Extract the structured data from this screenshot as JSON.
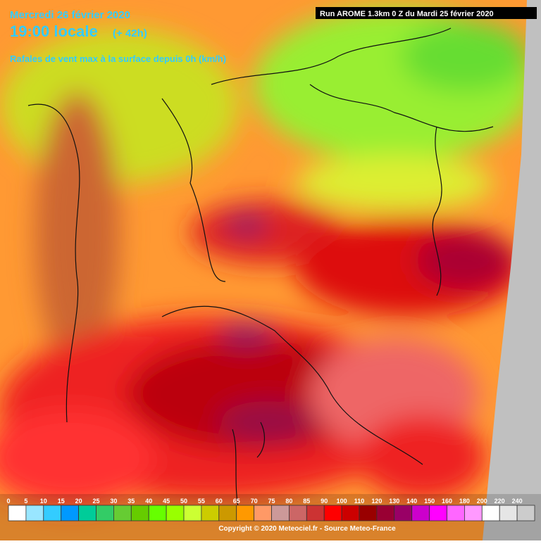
{
  "header": {
    "date": "Mercredi 26 février 2020",
    "time": "19:00 locale",
    "lead": "(+ 42h)",
    "parameter": "Rafales de vent max à la surface depuis 0h (km/h)",
    "run": "Run AROME 1.3km 0 Z du Mardi 25 février 2020"
  },
  "legend": {
    "items": [
      {
        "value": 0,
        "color": "#ffffff"
      },
      {
        "value": 5,
        "color": "#99e6ff"
      },
      {
        "value": 10,
        "color": "#33ccff"
      },
      {
        "value": 15,
        "color": "#0099ff"
      },
      {
        "value": 20,
        "color": "#00cc99"
      },
      {
        "value": 25,
        "color": "#33cc66"
      },
      {
        "value": 30,
        "color": "#66cc33"
      },
      {
        "value": 35,
        "color": "#66cc00"
      },
      {
        "value": 40,
        "color": "#66ff00"
      },
      {
        "value": 45,
        "color": "#99ff00"
      },
      {
        "value": 50,
        "color": "#ccff33"
      },
      {
        "value": 55,
        "color": "#cccc00"
      },
      {
        "value": 60,
        "color": "#cc9900"
      },
      {
        "value": 65,
        "color": "#ff9900"
      },
      {
        "value": 70,
        "color": "#ff9966"
      },
      {
        "value": 75,
        "color": "#cc9999"
      },
      {
        "value": 80,
        "color": "#cc6666"
      },
      {
        "value": 85,
        "color": "#cc3333"
      },
      {
        "value": 90,
        "color": "#ff0000"
      },
      {
        "value": 100,
        "color": "#cc0000"
      },
      {
        "value": 110,
        "color": "#990000"
      },
      {
        "value": 120,
        "color": "#990033"
      },
      {
        "value": 130,
        "color": "#990066"
      },
      {
        "value": 140,
        "color": "#cc00cc"
      },
      {
        "value": 150,
        "color": "#ff00ff"
      },
      {
        "value": 160,
        "color": "#ff66ff"
      },
      {
        "value": 180,
        "color": "#ff99ff"
      },
      {
        "value": 200,
        "color": "#ffffff"
      },
      {
        "value": 220,
        "color": "#e6e6e6"
      },
      {
        "value": 240,
        "color": "#cccccc"
      }
    ]
  },
  "footer": {
    "copyright": "Copyright © 2020 Meteociel.fr - Source Meteo-France"
  }
}
